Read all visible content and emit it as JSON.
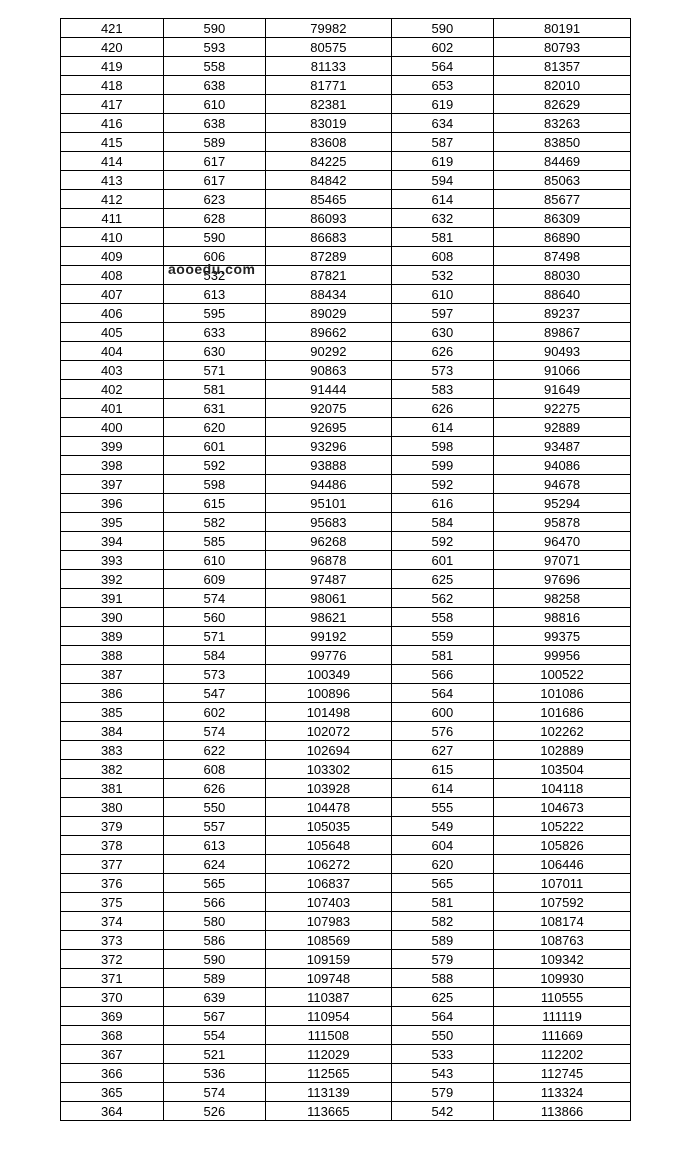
{
  "watermark_text": "aooedu.com",
  "table": {
    "type": "table",
    "background_color": "#ffffff",
    "border_color": "#000000",
    "text_color": "#000000",
    "font_size": 13,
    "columns": [
      "c0",
      "c1",
      "c2",
      "c3",
      "c4"
    ],
    "col_widths_pct": [
      18,
      18,
      22,
      18,
      24
    ],
    "rows": [
      [
        "421",
        "590",
        "79982",
        "590",
        "80191"
      ],
      [
        "420",
        "593",
        "80575",
        "602",
        "80793"
      ],
      [
        "419",
        "558",
        "81133",
        "564",
        "81357"
      ],
      [
        "418",
        "638",
        "81771",
        "653",
        "82010"
      ],
      [
        "417",
        "610",
        "82381",
        "619",
        "82629"
      ],
      [
        "416",
        "638",
        "83019",
        "634",
        "83263"
      ],
      [
        "415",
        "589",
        "83608",
        "587",
        "83850"
      ],
      [
        "414",
        "617",
        "84225",
        "619",
        "84469"
      ],
      [
        "413",
        "617",
        "84842",
        "594",
        "85063"
      ],
      [
        "412",
        "623",
        "85465",
        "614",
        "85677"
      ],
      [
        "411",
        "628",
        "86093",
        "632",
        "86309"
      ],
      [
        "410",
        "590",
        "86683",
        "581",
        "86890"
      ],
      [
        "409",
        "606",
        "87289",
        "608",
        "87498"
      ],
      [
        "408",
        "532",
        "87821",
        "532",
        "88030"
      ],
      [
        "407",
        "613",
        "88434",
        "610",
        "88640"
      ],
      [
        "406",
        "595",
        "89029",
        "597",
        "89237"
      ],
      [
        "405",
        "633",
        "89662",
        "630",
        "89867"
      ],
      [
        "404",
        "630",
        "90292",
        "626",
        "90493"
      ],
      [
        "403",
        "571",
        "90863",
        "573",
        "91066"
      ],
      [
        "402",
        "581",
        "91444",
        "583",
        "91649"
      ],
      [
        "401",
        "631",
        "92075",
        "626",
        "92275"
      ],
      [
        "400",
        "620",
        "92695",
        "614",
        "92889"
      ],
      [
        "399",
        "601",
        "93296",
        "598",
        "93487"
      ],
      [
        "398",
        "592",
        "93888",
        "599",
        "94086"
      ],
      [
        "397",
        "598",
        "94486",
        "592",
        "94678"
      ],
      [
        "396",
        "615",
        "95101",
        "616",
        "95294"
      ],
      [
        "395",
        "582",
        "95683",
        "584",
        "95878"
      ],
      [
        "394",
        "585",
        "96268",
        "592",
        "96470"
      ],
      [
        "393",
        "610",
        "96878",
        "601",
        "97071"
      ],
      [
        "392",
        "609",
        "97487",
        "625",
        "97696"
      ],
      [
        "391",
        "574",
        "98061",
        "562",
        "98258"
      ],
      [
        "390",
        "560",
        "98621",
        "558",
        "98816"
      ],
      [
        "389",
        "571",
        "99192",
        "559",
        "99375"
      ],
      [
        "388",
        "584",
        "99776",
        "581",
        "99956"
      ],
      [
        "387",
        "573",
        "100349",
        "566",
        "100522"
      ],
      [
        "386",
        "547",
        "100896",
        "564",
        "101086"
      ],
      [
        "385",
        "602",
        "101498",
        "600",
        "101686"
      ],
      [
        "384",
        "574",
        "102072",
        "576",
        "102262"
      ],
      [
        "383",
        "622",
        "102694",
        "627",
        "102889"
      ],
      [
        "382",
        "608",
        "103302",
        "615",
        "103504"
      ],
      [
        "381",
        "626",
        "103928",
        "614",
        "104118"
      ],
      [
        "380",
        "550",
        "104478",
        "555",
        "104673"
      ],
      [
        "379",
        "557",
        "105035",
        "549",
        "105222"
      ],
      [
        "378",
        "613",
        "105648",
        "604",
        "105826"
      ],
      [
        "377",
        "624",
        "106272",
        "620",
        "106446"
      ],
      [
        "376",
        "565",
        "106837",
        "565",
        "107011"
      ],
      [
        "375",
        "566",
        "107403",
        "581",
        "107592"
      ],
      [
        "374",
        "580",
        "107983",
        "582",
        "108174"
      ],
      [
        "373",
        "586",
        "108569",
        "589",
        "108763"
      ],
      [
        "372",
        "590",
        "109159",
        "579",
        "109342"
      ],
      [
        "371",
        "589",
        "109748",
        "588",
        "109930"
      ],
      [
        "370",
        "639",
        "110387",
        "625",
        "110555"
      ],
      [
        "369",
        "567",
        "110954",
        "564",
        "111119"
      ],
      [
        "368",
        "554",
        "111508",
        "550",
        "111669"
      ],
      [
        "367",
        "521",
        "112029",
        "533",
        "112202"
      ],
      [
        "366",
        "536",
        "112565",
        "543",
        "112745"
      ],
      [
        "365",
        "574",
        "113139",
        "579",
        "113324"
      ],
      [
        "364",
        "526",
        "113665",
        "542",
        "113866"
      ]
    ]
  }
}
